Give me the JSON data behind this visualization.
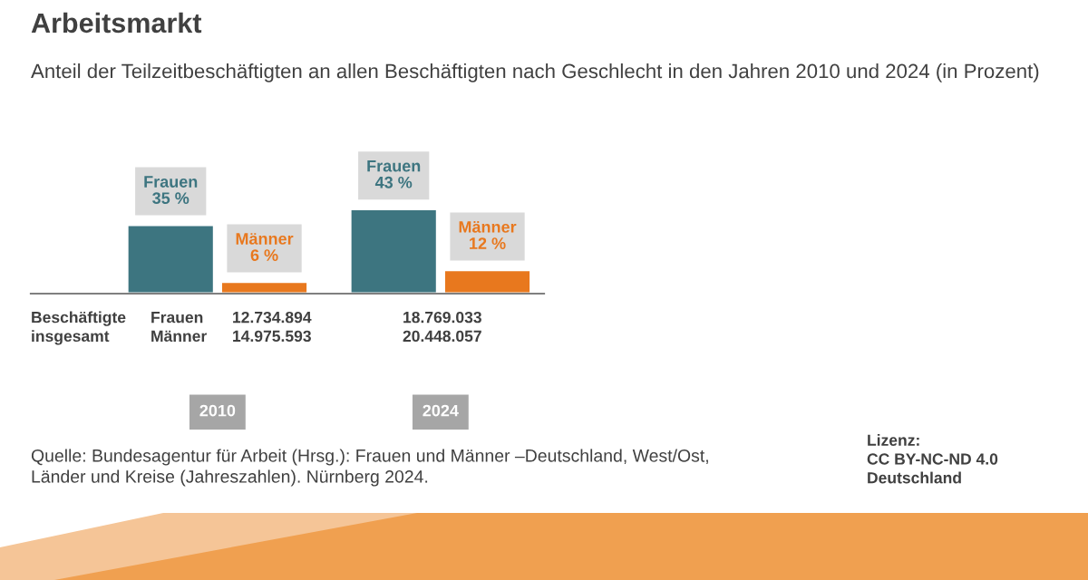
{
  "chart_data": {
    "type": "bar",
    "title": "Arbeitsmarkt",
    "subtitle": "Anteil der Teilzeitbeschäftigten an allen Beschäftigten nach Geschlecht in den Jahren 2010 und 2024 (in Prozent)",
    "categories": [
      "2010",
      "2024"
    ],
    "series": [
      {
        "name": "Frauen",
        "color": "#3d7580",
        "values": [
          35,
          43
        ],
        "value_labels": [
          "35 %",
          "43 %"
        ]
      },
      {
        "name": "Männer",
        "color": "#e8781e",
        "values": [
          6,
          12
        ],
        "value_labels": [
          "6 %",
          "12 %"
        ]
      }
    ],
    "annotations": [
      "Beschäftigte\ninsgesamt",
      "Frauen\nMänner",
      "12.734.894\n14.975.593",
      "18.769.033\n20.448.057",
      "Quelle: Bundesagentur für Arbeit (Hrsg.): Frauen und Männer –Deutschland, West/Ost,\nLänder und Kreise (Jahreszahlen). Nürnberg 2024.",
      "Lizenz:\nCC BY-NC-ND 4.0\nDeutschland"
    ]
  }
}
